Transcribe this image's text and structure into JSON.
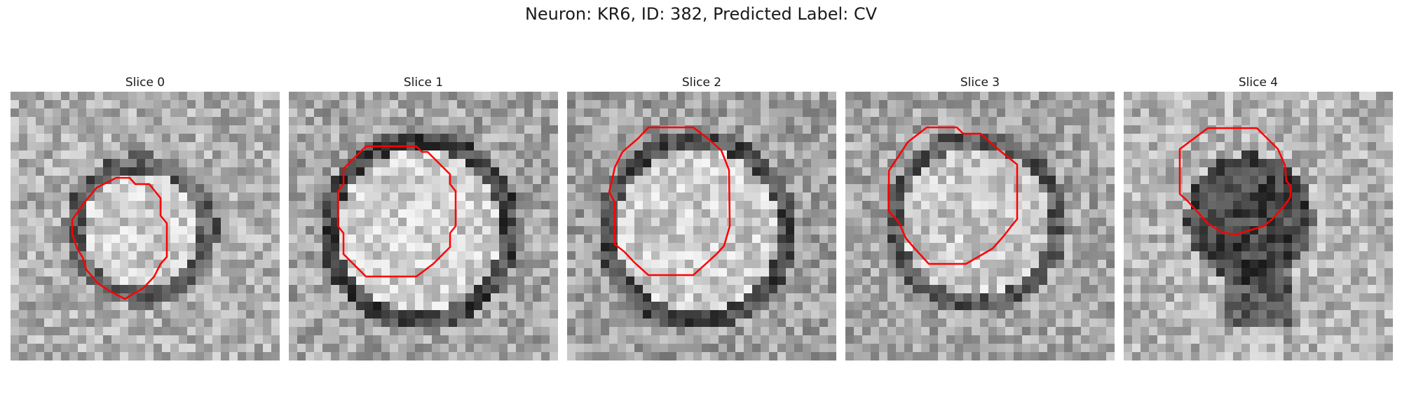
{
  "figure": {
    "title": "Neuron: KR6, ID: 382, Predicted Label: CV"
  },
  "panels": [
    {
      "title": "Slice 0",
      "contour_color": "#ff0000",
      "image_style": "grayscale-pixel-noise",
      "center_tone": "bright"
    },
    {
      "title": "Slice 1",
      "contour_color": "#ff0000",
      "image_style": "grayscale-pixel-noise",
      "center_tone": "bright"
    },
    {
      "title": "Slice 2",
      "contour_color": "#ff0000",
      "image_style": "grayscale-pixel-noise",
      "center_tone": "bright"
    },
    {
      "title": "Slice 3",
      "contour_color": "#ff0000",
      "image_style": "grayscale-pixel-noise",
      "center_tone": "bright"
    },
    {
      "title": "Slice 4",
      "contour_color": "#ff0000",
      "image_style": "grayscale-pixel-noise",
      "center_tone": "dark"
    }
  ]
}
